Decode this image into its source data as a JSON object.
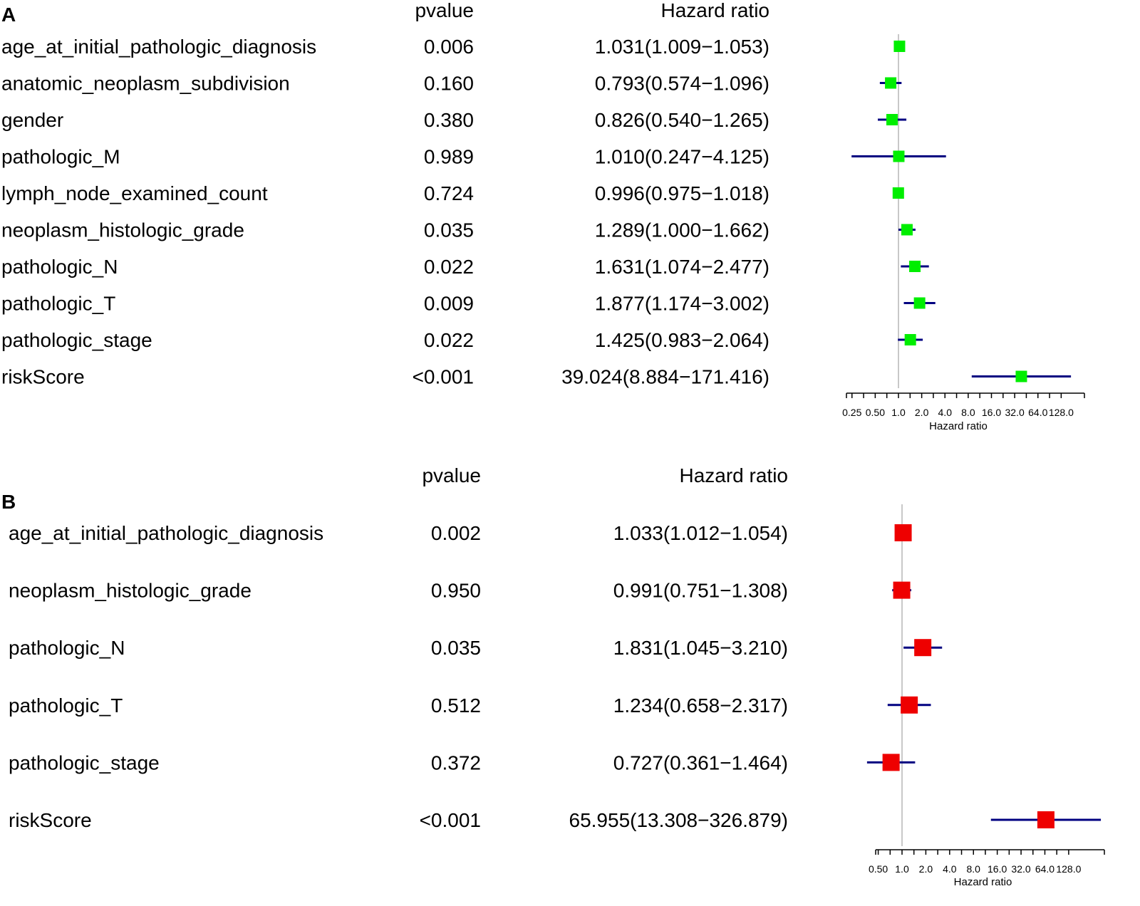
{
  "chart_data": [
    {
      "type": "forest",
      "panel": "A",
      "col_pvalue": "pvalue",
      "col_hr": "Hazard ratio",
      "xlabel": "Hazard ratio",
      "xscale": "log2",
      "xlim": [
        0.25,
        256
      ],
      "reference_line": 1.0,
      "marker_color": "#00ee00",
      "ci_color": "#000080",
      "ticks": [
        0.25,
        0.5,
        1,
        2,
        4,
        8,
        16,
        32,
        64,
        128
      ],
      "tick_labels": [
        "0.25",
        "0.50",
        "1.0",
        "2.0",
        "4.0",
        "8.0",
        "16.0",
        "32.0",
        "64.0",
        "128.0"
      ],
      "rows": [
        {
          "label": "age_at_initial_pathologic_diagnosis",
          "pvalue": "0.006",
          "hr_text": "1.031(1.009−1.053)",
          "hr": 1.031,
          "lo": 1.009,
          "hi": 1.053
        },
        {
          "label": "anatomic_neoplasm_subdivision",
          "pvalue": "0.160",
          "hr_text": "0.793(0.574−1.096)",
          "hr": 0.793,
          "lo": 0.574,
          "hi": 1.096
        },
        {
          "label": "gender",
          "pvalue": "0.380",
          "hr_text": "0.826(0.540−1.265)",
          "hr": 0.826,
          "lo": 0.54,
          "hi": 1.265
        },
        {
          "label": "pathologic_M",
          "pvalue": "0.989",
          "hr_text": "1.010(0.247−4.125)",
          "hr": 1.01,
          "lo": 0.247,
          "hi": 4.125
        },
        {
          "label": "lymph_node_examined_count",
          "pvalue": "0.724",
          "hr_text": "0.996(0.975−1.018)",
          "hr": 0.996,
          "lo": 0.975,
          "hi": 1.018
        },
        {
          "label": "neoplasm_histologic_grade",
          "pvalue": "0.035",
          "hr_text": "1.289(1.000−1.662)",
          "hr": 1.289,
          "lo": 1.0,
          "hi": 1.662
        },
        {
          "label": "pathologic_N",
          "pvalue": "0.022",
          "hr_text": "1.631(1.074−2.477)",
          "hr": 1.631,
          "lo": 1.074,
          "hi": 2.477
        },
        {
          "label": "pathologic_T",
          "pvalue": "0.009",
          "hr_text": "1.877(1.174−3.002)",
          "hr": 1.877,
          "lo": 1.174,
          "hi": 3.002
        },
        {
          "label": "pathologic_stage",
          "pvalue": "0.022",
          "hr_text": "1.425(0.983−2.064)",
          "hr": 1.425,
          "lo": 0.983,
          "hi": 2.064
        },
        {
          "label": "riskScore",
          "pvalue": "<0.001",
          "hr_text": "39.024(8.884−171.416)",
          "hr": 39.024,
          "lo": 8.884,
          "hi": 171.416
        }
      ]
    },
    {
      "type": "forest",
      "panel": "B",
      "col_pvalue": "pvalue",
      "col_hr": "Hazard ratio",
      "xlabel": "Hazard ratio",
      "xscale": "log2",
      "xlim": [
        0.354,
        362
      ],
      "reference_line": 1.0,
      "marker_color": "#ee0000",
      "ci_color": "#000080",
      "ticks": [
        0.5,
        1,
        2,
        4,
        8,
        16,
        32,
        64,
        128
      ],
      "tick_labels": [
        "0.50",
        "1.0",
        "2.0",
        "4.0",
        "8.0",
        "16.0",
        "32.0",
        "64.0",
        "128.0"
      ],
      "rows": [
        {
          "label": "age_at_initial_pathologic_diagnosis",
          "pvalue": "0.002",
          "hr_text": "1.033(1.012−1.054)",
          "hr": 1.033,
          "lo": 1.012,
          "hi": 1.054
        },
        {
          "label": "neoplasm_histologic_grade",
          "pvalue": "0.950",
          "hr_text": "0.991(0.751−1.308)",
          "hr": 0.991,
          "lo": 0.751,
          "hi": 1.308
        },
        {
          "label": "pathologic_N",
          "pvalue": "0.035",
          "hr_text": "1.831(1.045−3.210)",
          "hr": 1.831,
          "lo": 1.045,
          "hi": 3.21
        },
        {
          "label": "pathologic_T",
          "pvalue": "0.512",
          "hr_text": "1.234(0.658−2.317)",
          "hr": 1.234,
          "lo": 0.658,
          "hi": 2.317
        },
        {
          "label": "pathologic_stage",
          "pvalue": "0.372",
          "hr_text": "0.727(0.361−1.464)",
          "hr": 0.727,
          "lo": 0.361,
          "hi": 1.464
        },
        {
          "label": "riskScore",
          "pvalue": "<0.001",
          "hr_text": "65.955(13.308−326.879)",
          "hr": 65.955,
          "lo": 13.308,
          "hi": 326.879
        }
      ]
    }
  ]
}
